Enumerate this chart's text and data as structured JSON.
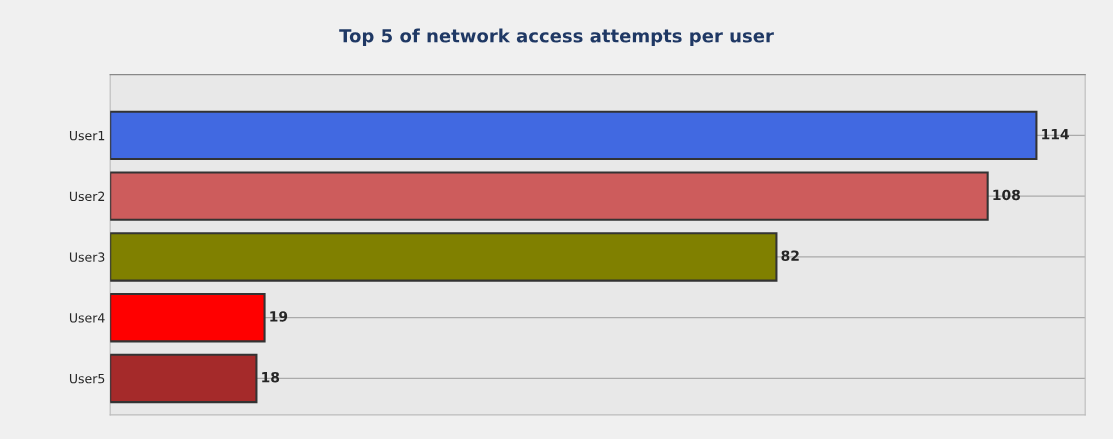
{
  "chart_data": {
    "type": "bar",
    "title": "Top 5 of network access attempts per user",
    "orientation": "horizontal",
    "categories": [
      "User1",
      "User2",
      "User3",
      "User4",
      "User5"
    ],
    "values": [
      114,
      108,
      82,
      19,
      18
    ],
    "colors": [
      "#4169e1",
      "#cd5c5c",
      "#808000",
      "#ff0000",
      "#a52a2a"
    ],
    "xlim": [
      0,
      120
    ],
    "tick_labels": "y",
    "grid": "y",
    "data_labels": true
  }
}
